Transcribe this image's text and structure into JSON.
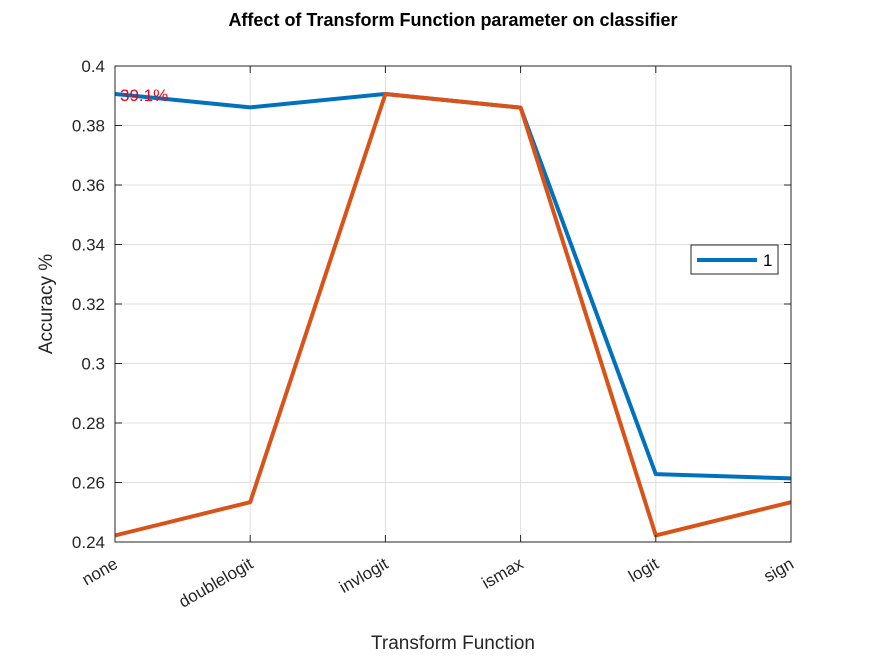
{
  "chart_data": {
    "type": "line",
    "title": "Affect of Transform Function parameter on classifier",
    "xlabel": "Transform Function",
    "ylabel": "Accuracy %",
    "categories": [
      "none",
      "doublelogit",
      "invlogit",
      "ismax",
      "logit",
      "sign"
    ],
    "ylim": [
      0.24,
      0.4
    ],
    "yticks": [
      0.24,
      0.26,
      0.28,
      0.3,
      0.32,
      0.34,
      0.36,
      0.38,
      0.4
    ],
    "grid": true,
    "legend_position": "right",
    "series": [
      {
        "name": "1",
        "color": "#0072bd",
        "values": [
          0.3906,
          0.3861,
          0.3906,
          0.386,
          0.2628,
          0.2614
        ]
      },
      {
        "color": "#d95319",
        "values": [
          0.2422,
          0.2534,
          0.3906,
          0.386,
          0.2422,
          0.2534
        ]
      }
    ],
    "annotation": {
      "text": "39.1%",
      "category": "none",
      "value": 0.391,
      "color": "#e8001c"
    }
  }
}
